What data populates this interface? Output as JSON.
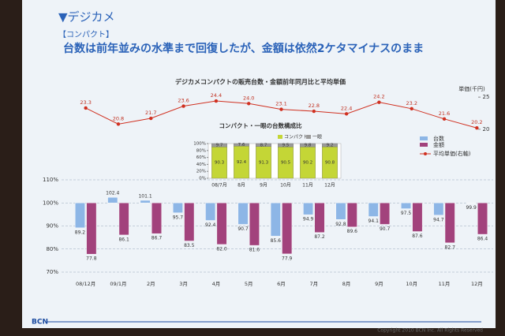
{
  "slide": {
    "section": "▼デジカメ",
    "subsection": "【コンパクト】",
    "headline": "台数は前年並みの水準まで回復したが、金額は依然2ケタマイナスのまま",
    "logo": "BCN",
    "copyright": "Copyright 2010 BCN Inc. All Rights Reserved"
  },
  "chart_data": [
    {
      "type": "line",
      "title": "デジカメコンパクトの販売台数・金額前年同月比と平均単価",
      "ylabel": "単価(千円)",
      "series": [
        {
          "name": "平均単価(右軸)",
          "color": "#d03020",
          "values": [
            23.3,
            20.8,
            21.7,
            23.6,
            24.4,
            24.0,
            23.1,
            22.8,
            22.4,
            24.2,
            23.2,
            21.6,
            20.2
          ],
          "value_labels": [
            "23.3",
            "20.8",
            "21.7",
            "23.6",
            "24.4",
            "24.0",
            "23.1",
            "22.8",
            "22.4",
            "24.2",
            "23.2",
            "21.6",
            "20.2"
          ]
        }
      ],
      "ylim": [
        19,
        26
      ],
      "yticks": [
        20,
        25
      ]
    },
    {
      "type": "stacked_bar",
      "title": "コンパクト・一眼の台数構成比",
      "categories": [
        "08/7月",
        "8月",
        "9月",
        "10月",
        "11月",
        "12月"
      ],
      "series": [
        {
          "name": "コンパクト",
          "color": "#c4d636",
          "values": [
            90.3,
            92.4,
            91.3,
            90.5,
            90.2,
            90.8
          ]
        },
        {
          "name": "一眼",
          "color": "#9a9a9a",
          "values": [
            9.7,
            7.6,
            8.7,
            9.5,
            9.8,
            9.2
          ]
        }
      ],
      "ylim": [
        0,
        100
      ],
      "yticks": [
        {
          "value": 0,
          "label": "0%"
        },
        {
          "value": 20,
          "label": "20%"
        },
        {
          "value": 40,
          "label": "40%"
        },
        {
          "value": 60,
          "label": "60%"
        },
        {
          "value": 80,
          "label": "80%"
        },
        {
          "value": 100,
          "label": "100%"
        }
      ]
    },
    {
      "type": "bar",
      "baseline": 100,
      "categories": [
        "08/12月",
        "09/1月",
        "2月",
        "3月",
        "4月",
        "5月",
        "6月",
        "7月",
        "8月",
        "9月",
        "10月",
        "11月",
        "12月"
      ],
      "series": [
        {
          "name": "台数",
          "color": "#8db6e6",
          "values": [
            89.2,
            102.4,
            101.1,
            95.7,
            92.4,
            90.7,
            85.6,
            94.9,
            92.8,
            94.1,
            97.5,
            94.7,
            99.9
          ],
          "value_labels": [
            "89.2",
            "102.4",
            "101.1",
            "95.7",
            "92.4",
            "90.7",
            "85.6",
            "94.9",
            "92.8",
            "94.1",
            "97.5",
            "94.7",
            "99.9"
          ]
        },
        {
          "name": "金額",
          "color": "#a2427c",
          "values": [
            77.8,
            86.1,
            86.7,
            83.5,
            82.0,
            81.6,
            77.9,
            87.2,
            89.6,
            90.7,
            87.6,
            82.7,
            86.4
          ],
          "value_labels": [
            "77.8",
            "86.1",
            "86.7",
            "83.5",
            "82.0",
            "81.6",
            "77.9",
            "87.2",
            "89.6",
            "90.7",
            "87.6",
            "82.7",
            "86.4"
          ]
        }
      ],
      "ylim": [
        70,
        110
      ],
      "yticks": [
        {
          "value": 70,
          "label": "70%"
        },
        {
          "value": 80,
          "label": "80%"
        },
        {
          "value": 90,
          "label": "90%"
        },
        {
          "value": 100,
          "label": "100%"
        },
        {
          "value": 110,
          "label": "110%"
        }
      ]
    }
  ]
}
